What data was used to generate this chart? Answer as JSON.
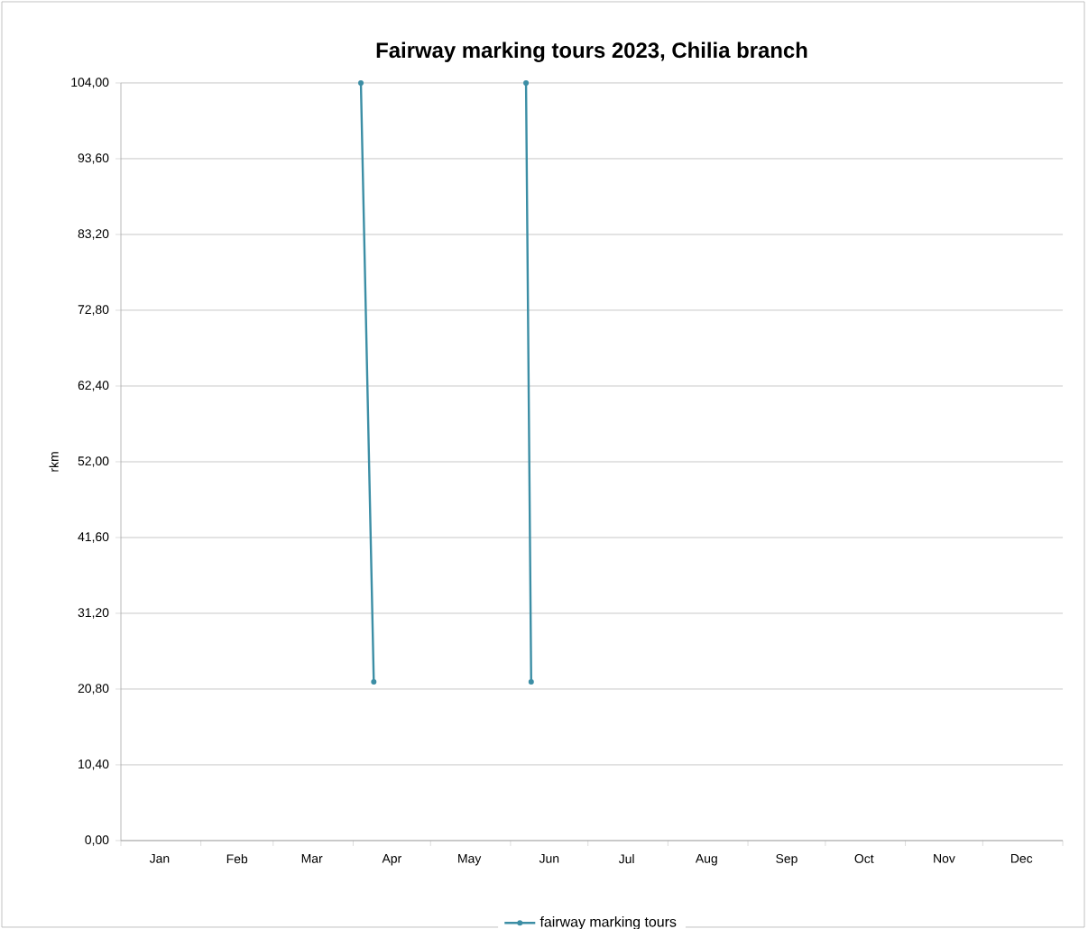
{
  "chart_data": {
    "type": "line",
    "title": "Fairway marking tours 2023, Chilia branch",
    "ylabel": "rkm",
    "series": [
      {
        "name": "fairway marking tours",
        "color": "#3c8ea5",
        "x": [
          "2023-04-04",
          "2023-04-09",
          "2023-05-01",
          "2023-06-07",
          "2023-06-09"
        ],
        "values": [
          104,
          21.8,
          null,
          104,
          21.8
        ]
      }
    ],
    "xlim": [
      "2023-01-01",
      "2024-01-01"
    ],
    "xticks": [
      {
        "value": "2023-01-01",
        "label": null
      },
      {
        "value": "2023-02-01",
        "label": null
      },
      {
        "value": "2023-03-01",
        "label": null
      },
      {
        "value": "2023-04-01",
        "label": null
      },
      {
        "value": "2023-05-01",
        "label": null
      },
      {
        "value": "2023-06-01",
        "label": null
      },
      {
        "value": "2023-07-01",
        "label": null
      },
      {
        "value": "2023-08-01",
        "label": null
      },
      {
        "value": "2023-09-01",
        "label": null
      },
      {
        "value": "2023-10-01",
        "label": null
      },
      {
        "value": "2023-11-01",
        "label": null
      },
      {
        "value": "2023-12-01",
        "label": null
      },
      {
        "value": "2024-01-01",
        "label": null
      },
      {
        "value": "2023-01-16",
        "label": "Jan"
      },
      {
        "value": "2023-02-15",
        "label": "Feb"
      },
      {
        "value": "2023-03-16",
        "label": "Mar"
      },
      {
        "value": "2023-04-16",
        "label": "Apr"
      },
      {
        "value": "2023-05-16",
        "label": "May"
      },
      {
        "value": "2023-06-16",
        "label": "Jun"
      },
      {
        "value": "2023-07-16",
        "label": "Jul"
      },
      {
        "value": "2023-08-16",
        "label": "Aug"
      },
      {
        "value": "2023-09-16",
        "label": "Sep"
      },
      {
        "value": "2023-10-16",
        "label": "Oct"
      },
      {
        "value": "2023-11-16",
        "label": "Nov"
      },
      {
        "value": "2023-12-16",
        "label": "Dec"
      }
    ],
    "ylim": [
      0,
      104
    ],
    "yticks": [
      {
        "value": 0,
        "label": "0,00"
      },
      {
        "value": 10.4,
        "label": "10,40"
      },
      {
        "value": 20.8,
        "label": "20,80"
      },
      {
        "value": 31.2,
        "label": "31,20"
      },
      {
        "value": 41.6,
        "label": "41,60"
      },
      {
        "value": 52,
        "label": "52,00"
      },
      {
        "value": 62.4,
        "label": "62,40"
      },
      {
        "value": 72.8,
        "label": "72,80"
      },
      {
        "value": 83.2,
        "label": "83,20"
      },
      {
        "value": 93.6,
        "label": "93,60"
      },
      {
        "value": 104,
        "label": "104,00"
      }
    ],
    "grid": "y",
    "legend": "bottom",
    "marker": "circle",
    "line_style": "solid"
  }
}
